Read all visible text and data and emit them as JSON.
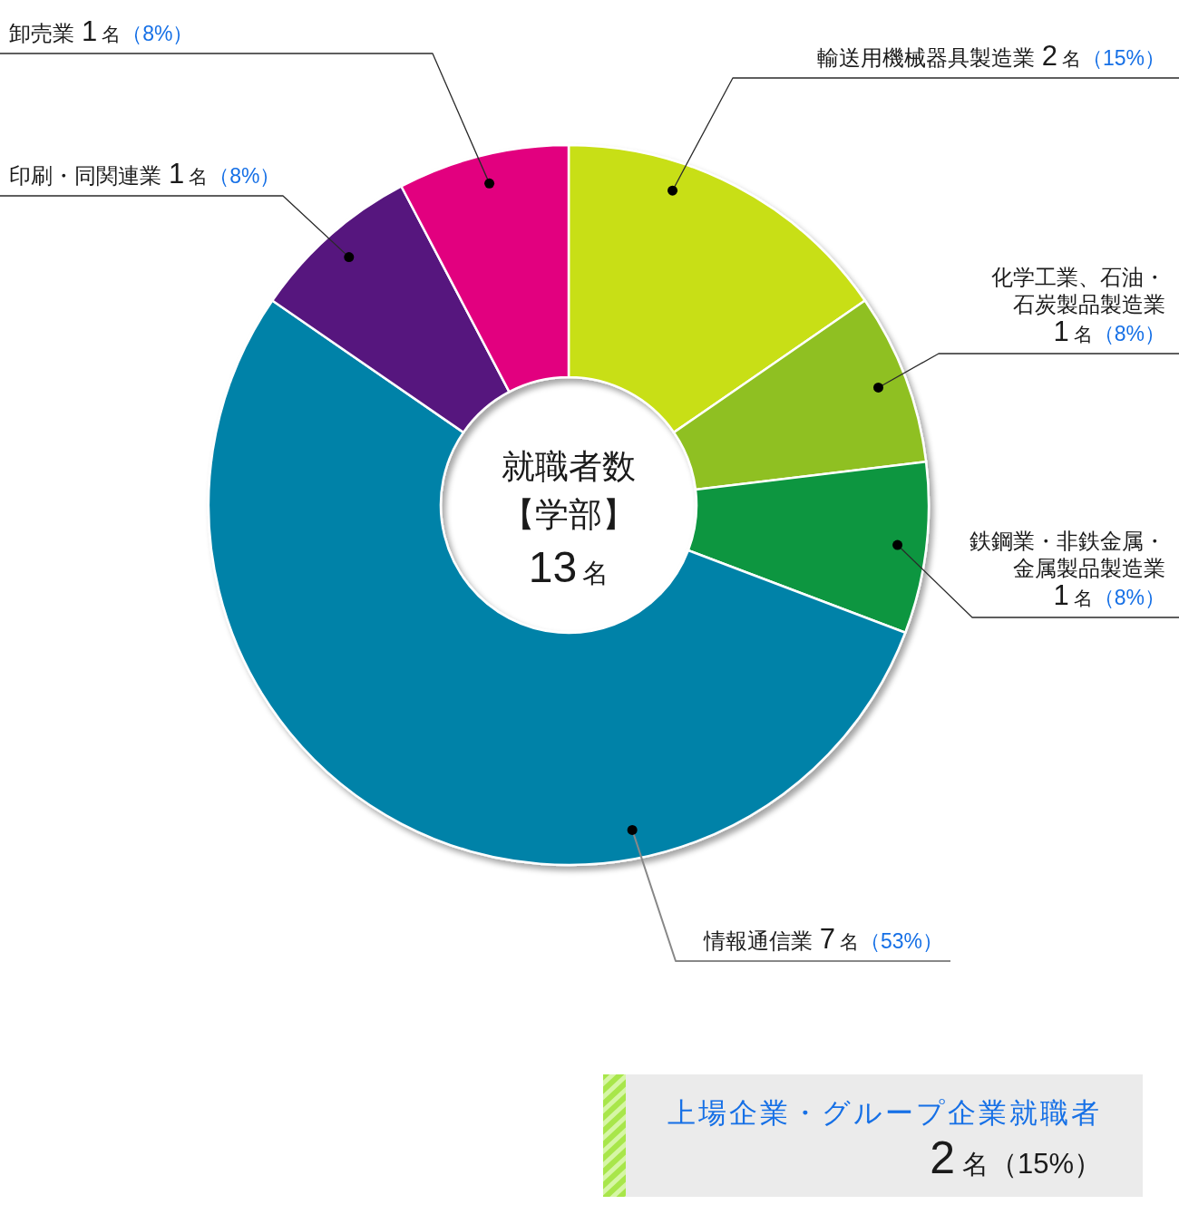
{
  "chart_data": {
    "type": "donut",
    "title": "就職者数",
    "subtitle": "【学部】",
    "categories": [
      "輸送用機械器具製造業",
      "化学工業、石油・石炭製品製造業",
      "鉄鋼業・非鉄金属・金属製品製造業",
      "情報通信業",
      "印刷・同関連業",
      "卸売業"
    ],
    "values": [
      2,
      1,
      1,
      7,
      1,
      1
    ],
    "colors": [
      "#c8df14",
      "#8fc020",
      "#08963f",
      "#0382a8",
      "#56137e",
      "#e2007f"
    ],
    "value_labels": [
      "2名（15%）",
      "1名（8%）",
      "1名（8%）",
      "7名（53%）",
      "1名（8%）",
      "1名（8%）"
    ],
    "annotations": [
      "13名",
      "上場企業・グループ企業就職者",
      "2名（15%）"
    ]
  }
}
